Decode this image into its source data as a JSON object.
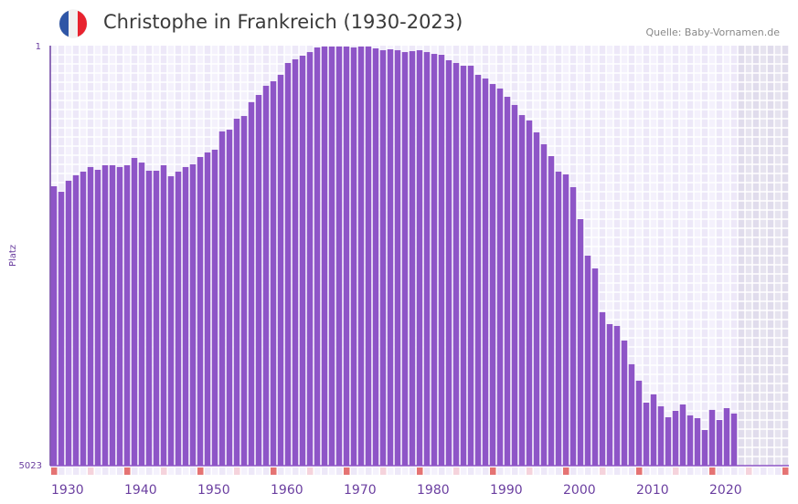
{
  "header": {
    "title": "Christophe in Frankreich (1930-2023)",
    "source": "Quelle: Baby-Vornamen.de",
    "flag_colors": [
      "#2f56a6",
      "#f1f1f1",
      "#e8232f"
    ]
  },
  "colors": {
    "bar": "#8e55c7",
    "axis": "#6b3fa0",
    "decade_marker": "#e57373",
    "half_decade_marker": "#f5d3dc"
  },
  "chart_data": {
    "type": "bar",
    "title": "Christophe in Frankreich (1930-2023)",
    "xlabel": "",
    "ylabel": "Platz",
    "y_reversed": true,
    "ylim": [
      1,
      5023
    ],
    "y_tick_labels": [
      "1",
      "5023"
    ],
    "xlim": [
      1930,
      2030
    ],
    "x_tick_labels": [
      "1930",
      "1940",
      "1950",
      "1960",
      "1970",
      "1980",
      "1990",
      "2000",
      "2010",
      "2020"
    ],
    "grid": true,
    "x": [
      1930,
      1931,
      1932,
      1933,
      1934,
      1935,
      1936,
      1937,
      1938,
      1939,
      1940,
      1941,
      1942,
      1943,
      1944,
      1945,
      1946,
      1947,
      1948,
      1949,
      1950,
      1951,
      1952,
      1953,
      1954,
      1955,
      1956,
      1957,
      1958,
      1959,
      1960,
      1961,
      1962,
      1963,
      1964,
      1965,
      1966,
      1967,
      1968,
      1969,
      1970,
      1971,
      1972,
      1973,
      1974,
      1975,
      1976,
      1977,
      1978,
      1979,
      1980,
      1981,
      1982,
      1983,
      1984,
      1985,
      1986,
      1987,
      1988,
      1989,
      1990,
      1991,
      1992,
      1993,
      1994,
      1995,
      1996,
      1997,
      1998,
      1999,
      2000,
      2001,
      2002,
      2003,
      2004,
      2005,
      2006,
      2007,
      2008,
      2009,
      2010,
      2011,
      2012,
      2013,
      2014,
      2015,
      2016,
      2017,
      2018,
      2019,
      2020,
      2021,
      2022,
      2023
    ],
    "values": [
      1675,
      1741,
      1609,
      1544,
      1500,
      1445,
      1478,
      1423,
      1423,
      1445,
      1423,
      1336,
      1391,
      1489,
      1489,
      1423,
      1555,
      1500,
      1445,
      1412,
      1325,
      1270,
      1237,
      1018,
      997,
      865,
      833,
      668,
      581,
      471,
      417,
      340,
      198,
      154,
      110,
      67,
      12,
      1,
      1,
      1,
      1,
      12,
      1,
      1,
      23,
      45,
      34,
      45,
      67,
      56,
      45,
      67,
      89,
      99,
      165,
      198,
      231,
      231,
      340,
      384,
      450,
      504,
      603,
      701,
      822,
      887,
      1029,
      1172,
      1314,
      1500,
      1533,
      1686,
      2069,
      2506,
      2660,
      3185,
      3327,
      3349,
      3524,
      3808,
      4005,
      4268,
      4169,
      4312,
      4443,
      4366,
      4290,
      4421,
      4454,
      4596,
      4355,
      4476,
      4334,
      4399
    ]
  }
}
